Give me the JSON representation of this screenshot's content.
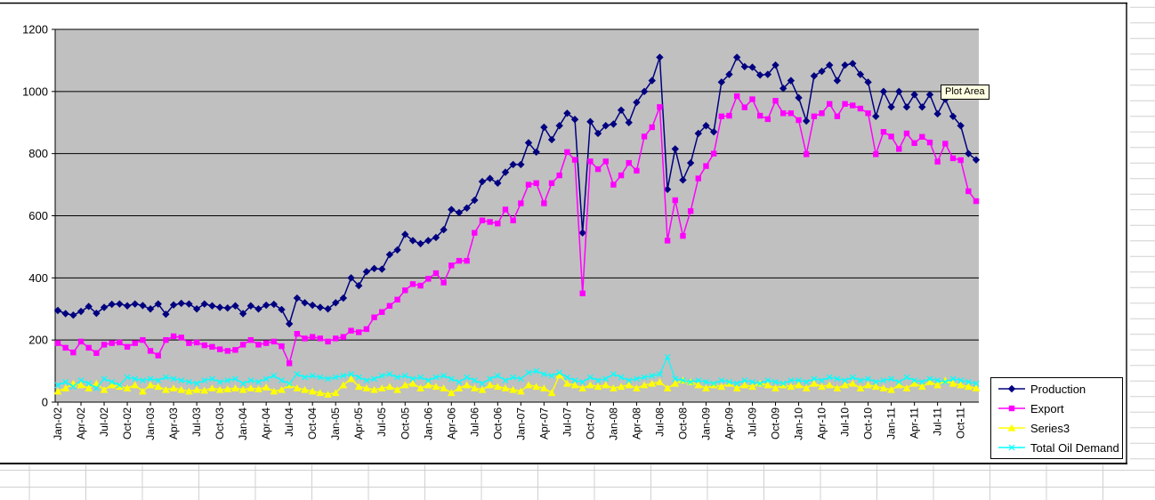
{
  "tooltip": {
    "text": "Plot Area"
  },
  "colors": {
    "plot_background": "#C0C0C0",
    "chart_background": "#FFFFFF",
    "gridline": "#000000",
    "sheet_gridline": "#D0D0D0",
    "chart_border": "#000000",
    "tooltip_background": "#FFFFE1"
  },
  "chart_data": {
    "type": "line",
    "title": "",
    "xlabel": "",
    "ylabel": "",
    "ylim": [
      0,
      1200
    ],
    "y_ticks": [
      0,
      200,
      400,
      600,
      800,
      1000,
      1200
    ],
    "tick_every": 3,
    "grid": true,
    "legend_position": "bottom-right",
    "categories": [
      "Jan-02",
      "Feb-02",
      "Mar-02",
      "Apr-02",
      "May-02",
      "Jun-02",
      "Jul-02",
      "Aug-02",
      "Sep-02",
      "Oct-02",
      "Nov-02",
      "Dec-02",
      "Jan-03",
      "Feb-03",
      "Mar-03",
      "Apr-03",
      "May-03",
      "Jun-03",
      "Jul-03",
      "Aug-03",
      "Sep-03",
      "Oct-03",
      "Nov-03",
      "Dec-03",
      "Jan-04",
      "Feb-04",
      "Mar-04",
      "Apr-04",
      "May-04",
      "Jun-04",
      "Jul-04",
      "Aug-04",
      "Sep-04",
      "Oct-04",
      "Nov-04",
      "Dec-04",
      "Jan-05",
      "Feb-05",
      "Mar-05",
      "Apr-05",
      "May-05",
      "Jun-05",
      "Jul-05",
      "Aug-05",
      "Sep-05",
      "Oct-05",
      "Nov-05",
      "Dec-05",
      "Jan-06",
      "Feb-06",
      "Mar-06",
      "Apr-06",
      "May-06",
      "Jun-06",
      "Jul-06",
      "Aug-06",
      "Sep-06",
      "Oct-06",
      "Nov-06",
      "Dec-06",
      "Jan-07",
      "Feb-07",
      "Mar-07",
      "Apr-07",
      "May-07",
      "Jun-07",
      "Jul-07",
      "Aug-07",
      "Sep-07",
      "Oct-07",
      "Nov-07",
      "Dec-07",
      "Jan-08",
      "Feb-08",
      "Mar-08",
      "Apr-08",
      "May-08",
      "Jun-08",
      "Jul-08",
      "Aug-08",
      "Sep-08",
      "Oct-08",
      "Nov-08",
      "Dec-08",
      "Jan-09",
      "Feb-09",
      "Mar-09",
      "Apr-09",
      "May-09",
      "Jun-09",
      "Jul-09",
      "Aug-09",
      "Sep-09",
      "Oct-09",
      "Nov-09",
      "Dec-09",
      "Jan-10",
      "Feb-10",
      "Mar-10",
      "Apr-10",
      "May-10",
      "Jun-10",
      "Jul-10",
      "Aug-10",
      "Sep-10",
      "Oct-10",
      "Nov-10",
      "Dec-10",
      "Jan-11",
      "Feb-11",
      "Mar-11",
      "Apr-11",
      "May-11",
      "Jun-11",
      "Jul-11",
      "Aug-11",
      "Sep-11",
      "Oct-11",
      "Nov-11",
      "Dec-11"
    ],
    "series": [
      {
        "name": "Production",
        "color": "#000080",
        "marker": "diamond",
        "values": [
          295,
          285,
          280,
          292,
          308,
          286,
          305,
          315,
          316,
          310,
          316,
          311,
          300,
          316,
          283,
          313,
          318,
          316,
          300,
          316,
          310,
          305,
          303,
          310,
          285,
          310,
          300,
          312,
          315,
          298,
          252,
          335,
          320,
          312,
          305,
          300,
          320,
          335,
          400,
          375,
          420,
          430,
          428,
          475,
          490,
          540,
          520,
          510,
          520,
          530,
          555,
          620,
          610,
          625,
          650,
          710,
          720,
          705,
          740,
          765,
          765,
          835,
          805,
          885,
          845,
          890,
          930,
          910,
          545,
          903,
          865,
          890,
          895,
          940,
          900,
          965,
          1000,
          1035,
          1110,
          685,
          815,
          715,
          770,
          865,
          890,
          870,
          1030,
          1055,
          1110,
          1080,
          1078,
          1053,
          1055,
          1085,
          1010,
          1035,
          980,
          905,
          1050,
          1065,
          1085,
          1035,
          1085,
          1090,
          1055,
          1030,
          920,
          1000,
          950,
          1000,
          950,
          990,
          950,
          990,
          928,
          975,
          920,
          890,
          800,
          780
        ]
      },
      {
        "name": "Export",
        "color": "#FF00FF",
        "marker": "square",
        "values": [
          190,
          175,
          160,
          195,
          175,
          158,
          185,
          190,
          192,
          178,
          190,
          200,
          165,
          150,
          200,
          212,
          208,
          190,
          192,
          183,
          178,
          170,
          165,
          168,
          185,
          200,
          185,
          190,
          195,
          180,
          125,
          220,
          205,
          210,
          205,
          195,
          205,
          210,
          230,
          225,
          235,
          273,
          290,
          310,
          330,
          360,
          380,
          375,
          397,
          415,
          385,
          440,
          455,
          455,
          545,
          585,
          580,
          575,
          620,
          585,
          640,
          700,
          705,
          640,
          705,
          730,
          805,
          780,
          350,
          775,
          750,
          775,
          700,
          730,
          770,
          745,
          855,
          885,
          950,
          520,
          650,
          535,
          615,
          720,
          760,
          800,
          920,
          922,
          985,
          949,
          975,
          922,
          911,
          970,
          930,
          930,
          908,
          798,
          920,
          930,
          960,
          920,
          960,
          955,
          945,
          930,
          798,
          870,
          855,
          815,
          865,
          834,
          854,
          836,
          774,
          832,
          785,
          779,
          679,
          647
        ]
      },
      {
        "name": "Series3",
        "color": "#FFFF00",
        "marker": "triangle",
        "values": [
          35,
          45,
          60,
          55,
          45,
          60,
          40,
          55,
          50,
          45,
          55,
          35,
          55,
          50,
          40,
          45,
          40,
          35,
          40,
          38,
          45,
          40,
          42,
          45,
          40,
          45,
          42,
          48,
          35,
          40,
          55,
          45,
          40,
          35,
          30,
          25,
          30,
          55,
          75,
          50,
          45,
          40,
          45,
          50,
          40,
          55,
          60,
          45,
          55,
          50,
          45,
          30,
          45,
          55,
          45,
          40,
          55,
          50,
          45,
          40,
          35,
          55,
          50,
          45,
          30,
          87,
          60,
          55,
          45,
          55,
          50,
          55,
          45,
          50,
          55,
          45,
          55,
          60,
          65,
          45,
          60,
          70,
          65,
          55,
          45,
          55,
          50,
          60,
          45,
          55,
          50,
          60,
          55,
          45,
          55,
          50,
          55,
          45,
          60,
          50,
          55,
          45,
          55,
          60,
          45,
          55,
          50,
          45,
          40,
          55,
          45,
          60,
          50,
          65,
          55,
          70,
          60,
          55,
          50,
          45
        ]
      },
      {
        "name": "Total Oil Demand",
        "color": "#00FFFF",
        "marker": "x",
        "values": [
          55,
          65,
          50,
          70,
          60,
          45,
          75,
          65,
          55,
          80,
          75,
          70,
          75,
          70,
          80,
          75,
          70,
          65,
          60,
          70,
          75,
          65,
          70,
          75,
          60,
          70,
          65,
          75,
          85,
          70,
          60,
          90,
          80,
          85,
          80,
          75,
          80,
          85,
          90,
          80,
          70,
          75,
          85,
          90,
          80,
          85,
          75,
          80,
          70,
          80,
          85,
          75,
          65,
          80,
          70,
          60,
          75,
          85,
          70,
          80,
          75,
          95,
          100,
          90,
          85,
          95,
          80,
          70,
          65,
          80,
          70,
          75,
          90,
          80,
          70,
          75,
          80,
          85,
          90,
          145,
          75,
          70,
          65,
          70,
          65,
          60,
          70,
          65,
          60,
          70,
          65,
          60,
          70,
          65,
          60,
          70,
          70,
          65,
          75,
          70,
          80,
          75,
          70,
          80,
          70,
          75,
          65,
          70,
          75,
          65,
          80,
          70,
          65,
          75,
          70,
          65,
          75,
          70,
          65,
          60
        ]
      }
    ]
  }
}
